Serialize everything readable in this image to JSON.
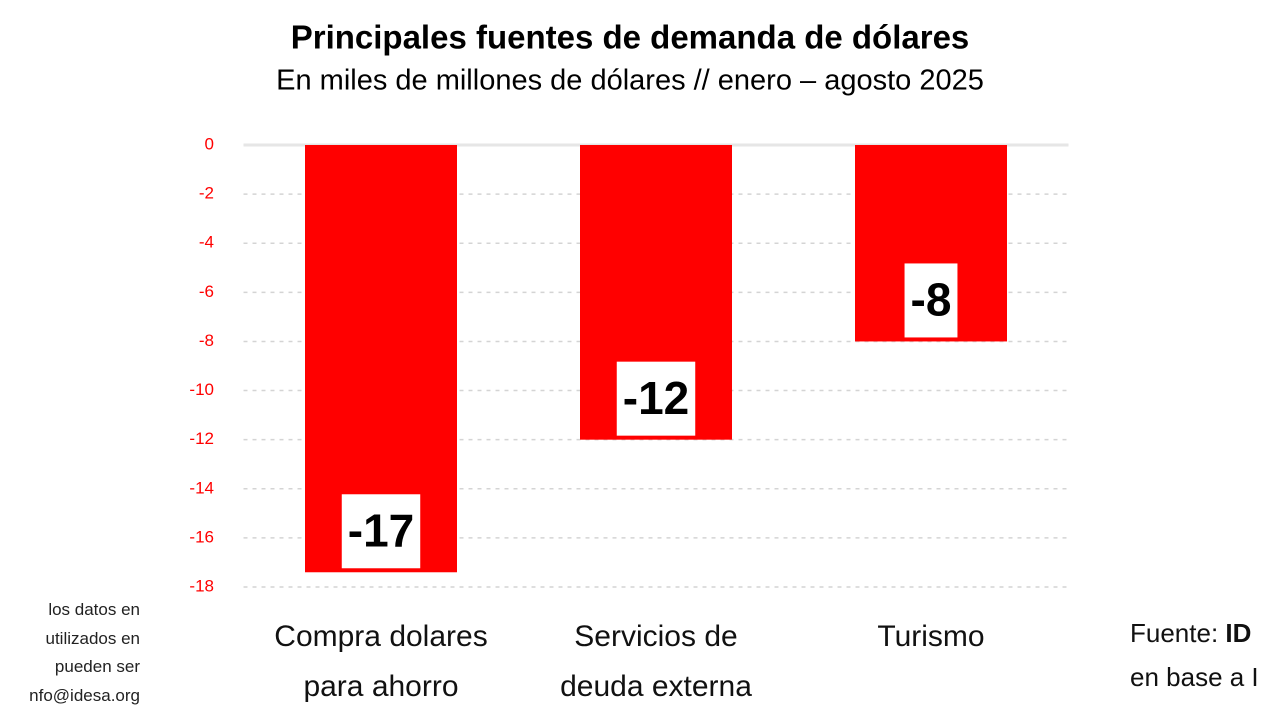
{
  "chart_data": {
    "type": "bar",
    "title": "Principales fuentes de demanda de dólares",
    "subtitle": "En miles de millones de dólares // enero – agosto 2025",
    "categories": [
      "Compra dolares para ahorro",
      "Servicios de deuda externa",
      "Turismo"
    ],
    "values": [
      -17.4,
      -12,
      -8
    ],
    "value_labels": [
      "-17",
      "-12",
      "-8"
    ],
    "color": "#ff0000",
    "tick_color": "#ff0000",
    "ylim": [
      0,
      -18
    ],
    "yticks": [
      0,
      -2,
      -4,
      -6,
      -8,
      -10,
      -12,
      -14,
      -16,
      -18
    ],
    "grid": true,
    "left_note": [
      "los datos en",
      "utilizados en",
      "pueden ser",
      "nfo@idesa.org"
    ],
    "source": {
      "label": "Fuente:",
      "name": "ID",
      "line2": "en base a I"
    }
  }
}
